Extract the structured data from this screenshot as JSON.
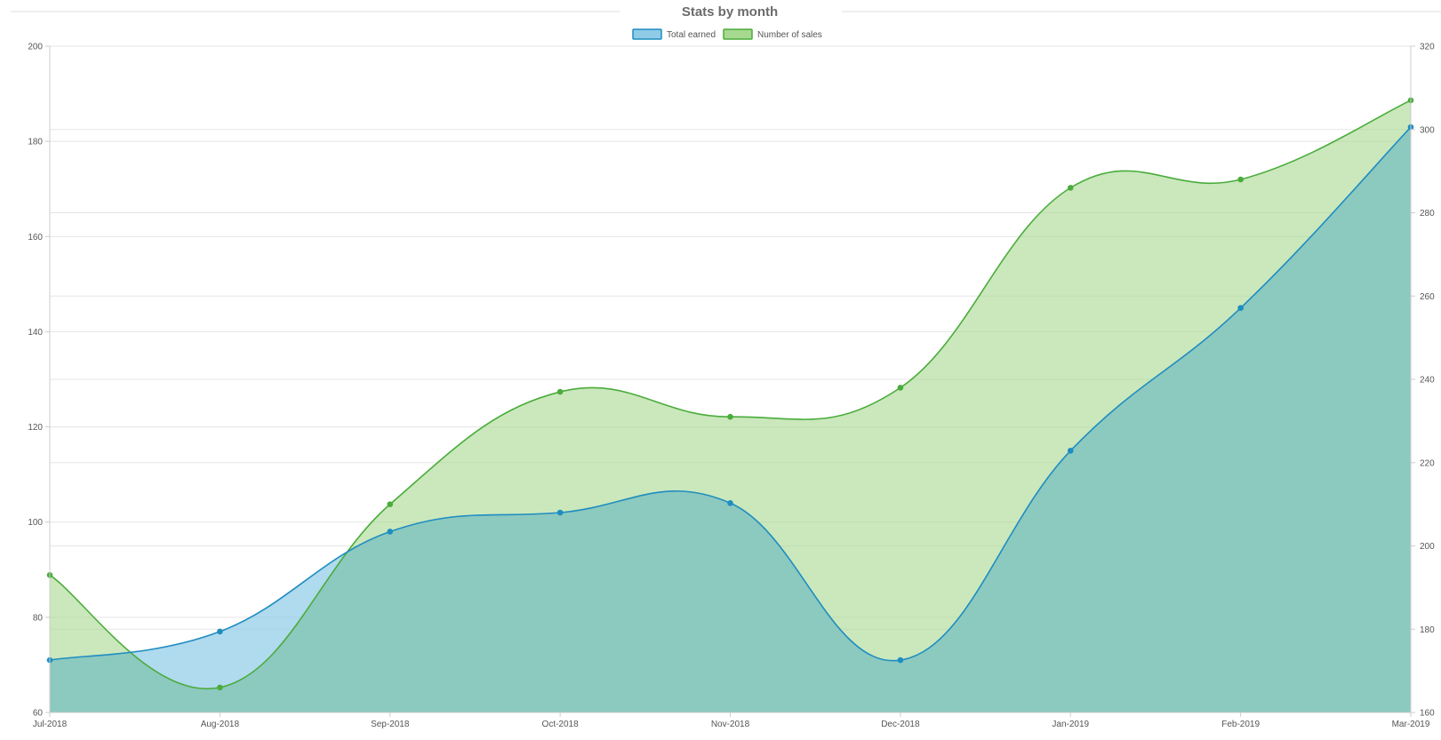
{
  "colors": {
    "total_earned_line": "#1f8dc1",
    "total_earned_fill": "#8fcbe6",
    "number_of_sales_line": "#4aac3b",
    "number_of_sales_fill": "#a7d890",
    "overlap_fill": "#8cc9bf",
    "grid": "#e5e5e5",
    "axis": "#cccccc"
  },
  "chart_data": {
    "type": "area",
    "title": "Stats by month",
    "legend_position": "top-center",
    "grid": true,
    "categories": [
      "Jul-2018",
      "Aug-2018",
      "Sep-2018",
      "Oct-2018",
      "Nov-2018",
      "Dec-2018",
      "Jan-2019",
      "Feb-2019",
      "Mar-2019"
    ],
    "y_left": {
      "ticks": [
        "60",
        "80",
        "100",
        "120",
        "140",
        "160",
        "180",
        "200"
      ],
      "min": 60,
      "max": 200
    },
    "y_right": {
      "ticks": [
        "160",
        "180",
        "200",
        "220",
        "240",
        "260",
        "280",
        "300",
        "320"
      ],
      "min": 160,
      "max": 320
    },
    "series": [
      {
        "name": "Total earned",
        "axis": "left",
        "values": [
          71,
          77,
          98,
          102,
          104,
          71,
          115,
          145,
          183
        ]
      },
      {
        "name": "Number of sales",
        "axis": "right",
        "values": [
          193,
          166,
          210,
          237,
          231,
          238,
          286,
          288,
          307
        ]
      }
    ]
  }
}
